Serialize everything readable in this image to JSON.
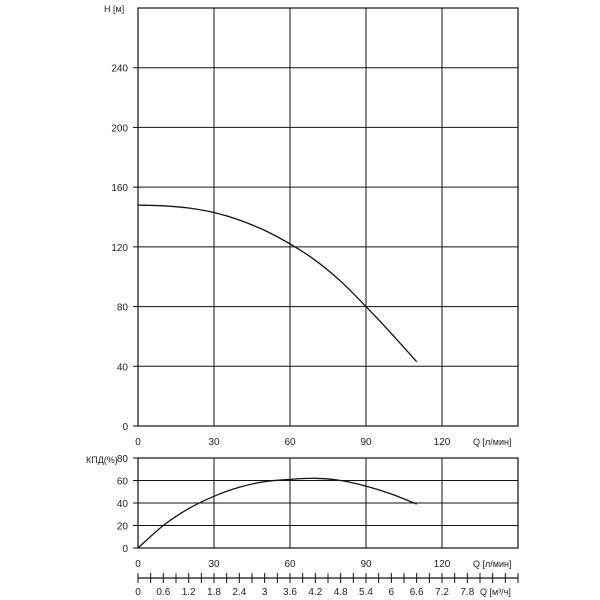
{
  "chart_data": [
    {
      "type": "line",
      "ylabel": "H [м]",
      "xlabel": "Q [л/мин]",
      "x_ticks": [
        0,
        30,
        60,
        90,
        120
      ],
      "y_ticks": [
        0,
        40,
        80,
        120,
        160,
        200,
        240
      ],
      "xlim": [
        0,
        150
      ],
      "ylim": [
        0,
        280
      ],
      "grid": true,
      "series": [
        {
          "x": [
            0,
            10,
            20,
            30,
            40,
            50,
            60,
            70,
            80,
            90,
            100,
            110
          ],
          "y": [
            148,
            147.5,
            146,
            143,
            138,
            131,
            122,
            111,
            97,
            80,
            62,
            43
          ]
        }
      ]
    },
    {
      "type": "line",
      "ylabel": "КПД(%)",
      "xlabel": "Q [л/мин]",
      "x_ticks": [
        0,
        30,
        60,
        90,
        120
      ],
      "y_ticks": [
        0,
        20,
        40,
        60,
        80
      ],
      "xlim": [
        0,
        150
      ],
      "ylim": [
        0,
        80
      ],
      "grid": true,
      "series": [
        {
          "x": [
            0,
            10,
            20,
            30,
            40,
            50,
            60,
            70,
            80,
            90,
            100,
            110
          ],
          "y": [
            0,
            20,
            35,
            46,
            54,
            59,
            61,
            62,
            60,
            55,
            48,
            39
          ]
        }
      ]
    }
  ],
  "secondary_axis": {
    "label": "Q [м³/ч]",
    "ticks": [
      "0",
      "0.6",
      "1.2",
      "1.8",
      "2.4",
      "3",
      "3.6",
      "4.2",
      "4.8",
      "5.4",
      "6",
      "6.6",
      "7.2",
      "7.8"
    ],
    "tick_values": [
      0,
      0.6,
      1.2,
      1.8,
      2.4,
      3,
      3.6,
      4.2,
      4.8,
      5.4,
      6,
      6.6,
      7.2,
      7.8
    ],
    "max": 9
  }
}
